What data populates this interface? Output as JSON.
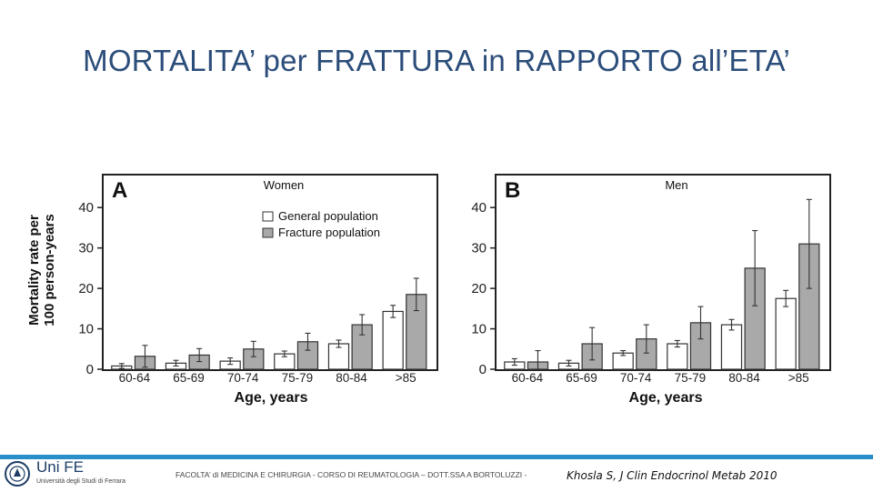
{
  "title": "MORTALITA’ per FRATTURA in RAPPORTO all’ETA’",
  "colors": {
    "title": "#2b4d7a",
    "fracture_bar": "#a9a9a9",
    "general_bar": "#ffffff",
    "footer_bar": "#2a8fc9"
  },
  "shared": {
    "ylabel_line1": "Mortality rate per",
    "ylabel_line2": "100 person-years",
    "xlabel": "Age, years"
  },
  "chart_data": [
    {
      "type": "bar",
      "panel_letter": "A",
      "title": "Women",
      "categories": [
        "60-64",
        "65-69",
        "70-74",
        "75-79",
        "80-84",
        ">85"
      ],
      "yticks": [
        "0",
        "10",
        "20",
        "30",
        "40"
      ],
      "ylim": [
        0,
        45
      ],
      "legend": [
        "General population",
        "Fracture population"
      ],
      "series": [
        {
          "name": "General population",
          "values": [
            0.8,
            1.5,
            2.0,
            3.8,
            6.3,
            14.3
          ],
          "errors": [
            0.6,
            0.7,
            0.8,
            0.7,
            0.9,
            1.5
          ]
        },
        {
          "name": "Fracture population",
          "values": [
            3.2,
            3.5,
            5.0,
            6.8,
            11.0,
            18.5
          ],
          "errors": [
            2.7,
            1.6,
            1.9,
            2.1,
            2.5,
            4.0
          ]
        }
      ]
    },
    {
      "type": "bar",
      "panel_letter": "B",
      "title": "Men",
      "categories": [
        "60-64",
        "65-69",
        "70-74",
        "75-79",
        "80-84",
        ">85"
      ],
      "yticks": [
        "0",
        "10",
        "20",
        "30",
        "40"
      ],
      "ylim": [
        0,
        45
      ],
      "legend": [],
      "series": [
        {
          "name": "General population",
          "values": [
            1.8,
            1.5,
            4.0,
            6.3,
            11.0,
            17.5
          ],
          "errors": [
            0.8,
            0.7,
            0.6,
            0.8,
            1.3,
            2.0
          ]
        },
        {
          "name": "Fracture population",
          "values": [
            1.8,
            6.3,
            7.5,
            11.5,
            25.0,
            31.0
          ],
          "errors": [
            2.8,
            4.0,
            3.5,
            4.0,
            9.3,
            11.0
          ]
        }
      ]
    }
  ],
  "footer": {
    "logo": "Uni FE",
    "logo_sub": "Università degli Studi di Ferrara",
    "text": "FACOLTA’ di MEDICINA E CHIRURGIA - CORSO DI REUMATOLOGIA – DOTT.SSA A BORTOLUZZI -",
    "citation": "Khosla S, J Clin Endocrinol Metab 2010"
  }
}
